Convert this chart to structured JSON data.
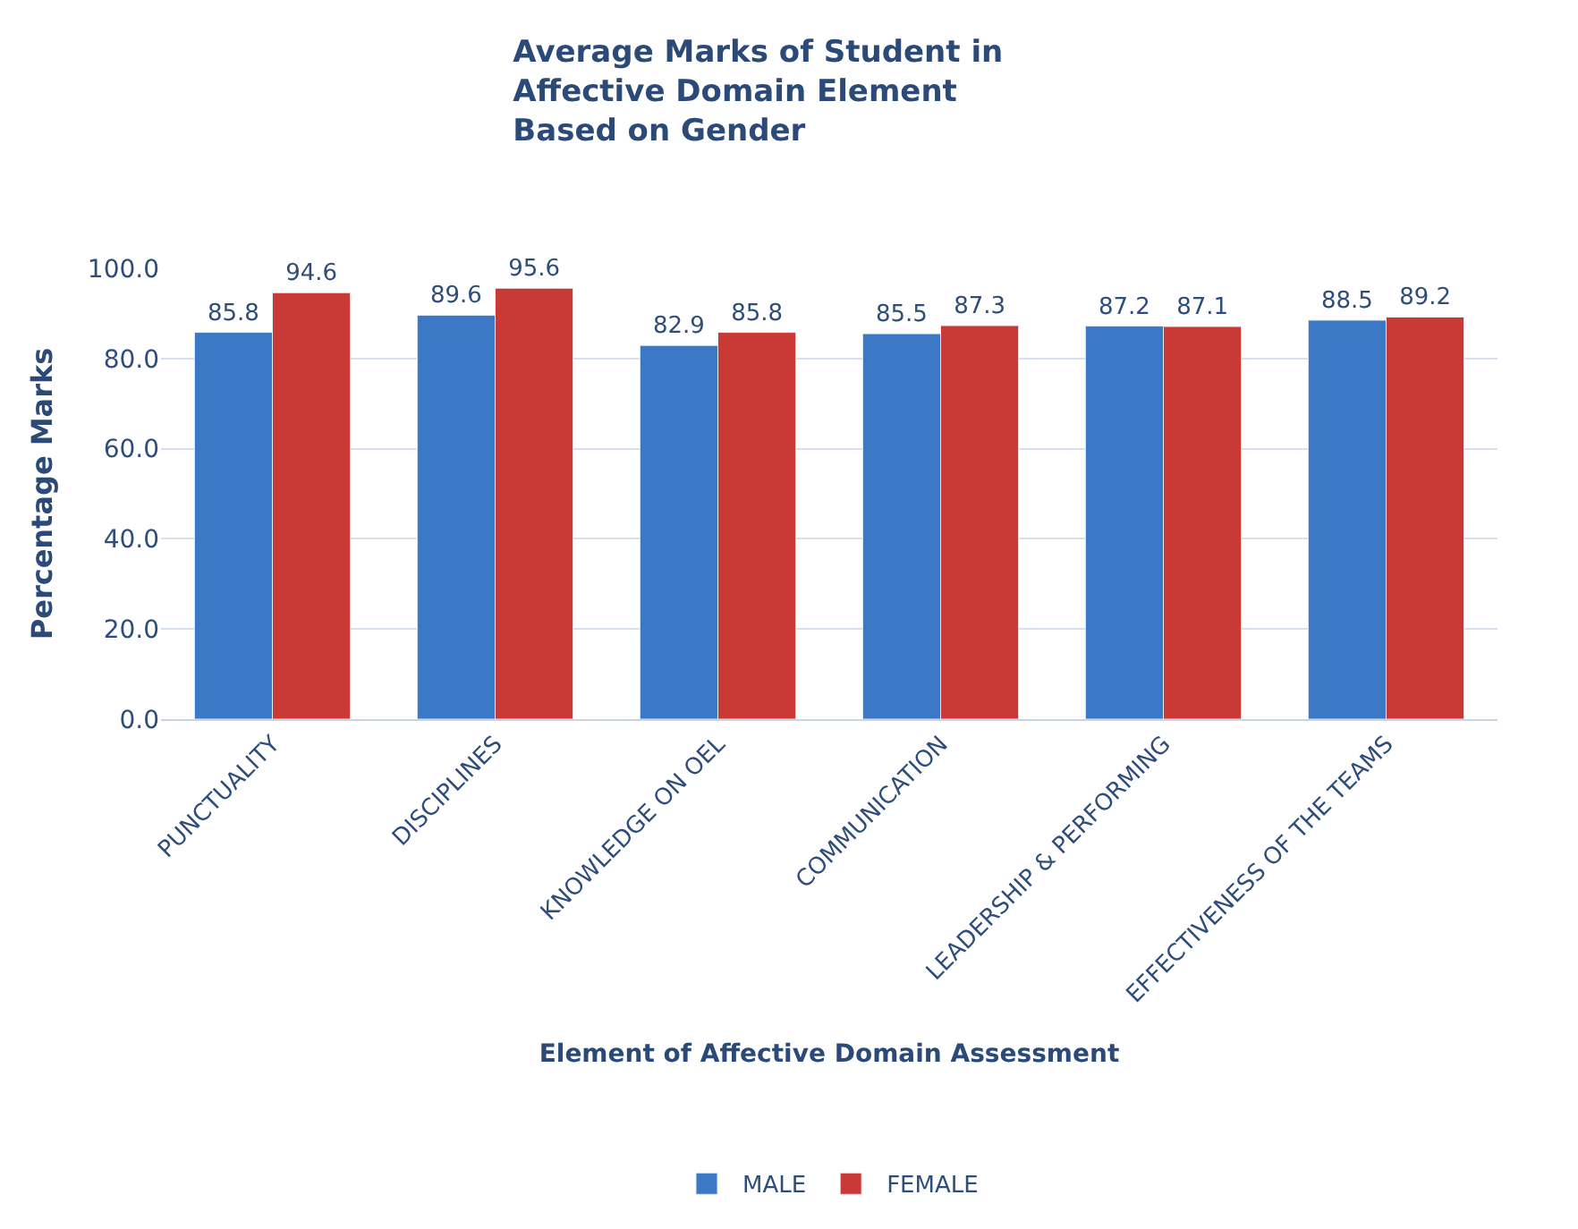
{
  "chart_data": {
    "type": "bar",
    "title": "Average Marks of Student in\nAffective Domain Element\nBased on Gender",
    "xlabel": "Element of Affective Domain Assessment",
    "ylabel": "Percentage Marks",
    "categories": [
      "PUNCTUALITY",
      "DISCIPLINES",
      "KNOWLEDGE ON OEL",
      "COMMUNICATION",
      "LEADERSHIP & PERFORMING",
      "EFFECTIVENESS OF THE TEAMS"
    ],
    "series": [
      {
        "name": "MALE",
        "color": "#3b78c6",
        "values": [
          85.8,
          89.6,
          82.9,
          85.5,
          87.2,
          88.5
        ]
      },
      {
        "name": "FEMALE",
        "color": "#c93a36",
        "values": [
          94.6,
          95.6,
          85.8,
          87.3,
          87.1,
          89.2
        ]
      }
    ],
    "ylim": [
      0,
      100
    ],
    "yticks": [
      {
        "value": 0,
        "label": "0.0"
      },
      {
        "value": 20,
        "label": "20.0"
      },
      {
        "value": 40,
        "label": "40.0"
      },
      {
        "value": 60,
        "label": "60.0"
      },
      {
        "value": 80,
        "label": "80.0"
      },
      {
        "value": 100,
        "label": "100.0"
      }
    ],
    "grid": "y",
    "legend": "bottom",
    "data_labels": true
  }
}
